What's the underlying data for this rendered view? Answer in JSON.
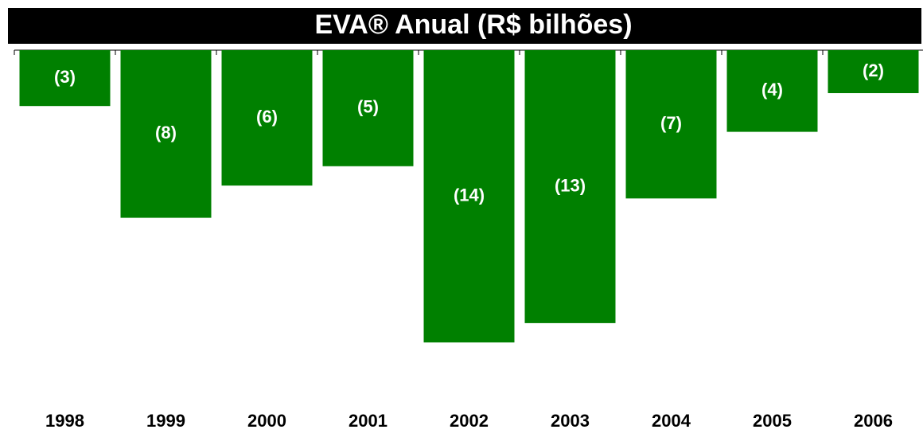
{
  "chart_data": {
    "type": "bar",
    "title": "EVA® Anual (R$ bilhões)",
    "categories": [
      "1998",
      "1999",
      "2000",
      "2001",
      "2002",
      "2003",
      "2004",
      "2005",
      "2006"
    ],
    "values": [
      -2.6,
      -7.8,
      -6.3,
      -5.4,
      -13.6,
      -12.7,
      -6.9,
      -3.8,
      -2.0
    ],
    "value_labels": [
      "(3)",
      "(8)",
      "(6)",
      "(5)",
      "(14)",
      "(13)",
      "(7)",
      "(4)",
      "(2)"
    ],
    "color": "#008000",
    "ylim": [
      -16,
      0
    ]
  }
}
